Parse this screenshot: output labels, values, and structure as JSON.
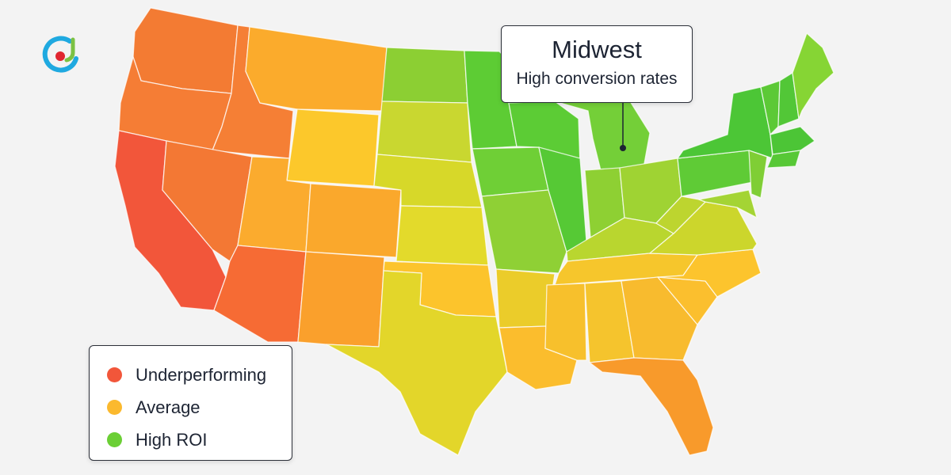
{
  "callout": {
    "title": "Midwest",
    "subtitle": "High conversion rates"
  },
  "legend": {
    "items": [
      {
        "label": "Underperforming",
        "color": "#f2563a"
      },
      {
        "label": "Average",
        "color": "#fbb92e"
      },
      {
        "label": "High ROI",
        "color": "#6bcf35"
      }
    ]
  },
  "map": {
    "type": "choropleth",
    "region": "contiguous United States",
    "scale": [
      "#f2563a",
      "#fbb92e",
      "#6bcf35"
    ]
  },
  "logo": {
    "icon": "brand-logo-icon",
    "colors": [
      "#1fa9e0",
      "#e02630",
      "#7bc143"
    ]
  }
}
